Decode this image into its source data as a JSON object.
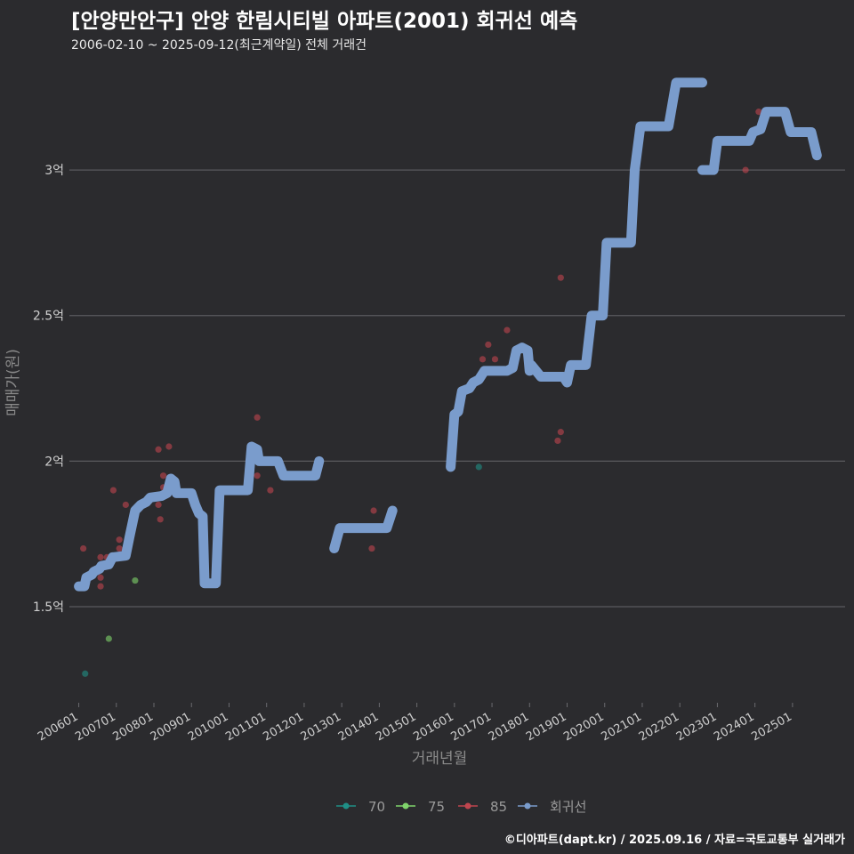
{
  "header": {
    "title": "[안양만안구] 안양 한림시티빌 아파트(2001) 회귀선 예측",
    "subtitle": "2006-02-10 ~ 2025-09-12(최근계약일) 전체 거래건"
  },
  "footer": "©디아파트(dapt.kr) / 2025.09.16 / 자료=국토교통부 실거래가",
  "chart_data": {
    "type": "scatter",
    "title": "[안양만안구] 안양 한림시티빌 아파트(2001) 회귀선 예측",
    "subtitle": "2006-02-10 ~ 2025-09-12(최근계약일) 전체 거래건",
    "xlabel": "거래년월",
    "ylabel": "매매가(원)",
    "xlim": [
      2005.75,
      2026.4
    ],
    "ylim": [
      1.17,
      3.37
    ],
    "y_ticks": [
      {
        "value": 1.5,
        "label": "1.5억"
      },
      {
        "value": 2.0,
        "label": "2억"
      },
      {
        "value": 2.5,
        "label": "2.5억"
      },
      {
        "value": 3.0,
        "label": "3억"
      }
    ],
    "x_ticks": [
      {
        "value": 2006,
        "label": "200601"
      },
      {
        "value": 2007,
        "label": "200701"
      },
      {
        "value": 2008,
        "label": "200801"
      },
      {
        "value": 2009,
        "label": "200901"
      },
      {
        "value": 2010,
        "label": "201001"
      },
      {
        "value": 2011,
        "label": "201101"
      },
      {
        "value": 2012,
        "label": "201201"
      },
      {
        "value": 2013,
        "label": "201301"
      },
      {
        "value": 2014,
        "label": "201401"
      },
      {
        "value": 2015,
        "label": "201501"
      },
      {
        "value": 2016,
        "label": "201601"
      },
      {
        "value": 2017,
        "label": "201701"
      },
      {
        "value": 2018,
        "label": "201801"
      },
      {
        "value": 2019,
        "label": "201901"
      },
      {
        "value": 2020,
        "label": "202001"
      },
      {
        "value": 2021,
        "label": "202101"
      },
      {
        "value": 2022,
        "label": "202201"
      },
      {
        "value": 2023,
        "label": "202301"
      },
      {
        "value": 2024,
        "label": "202401"
      },
      {
        "value": 2025,
        "label": "202501"
      }
    ],
    "legend_position": "bottom",
    "series": [
      {
        "name": "70",
        "kind": "points",
        "color": "#1f8f86",
        "points": [
          [
            2006.17,
            1.27
          ],
          [
            2016.65,
            1.98
          ]
        ]
      },
      {
        "name": "75",
        "kind": "points",
        "color": "#7fd46b",
        "points": [
          [
            2006.8,
            1.39
          ],
          [
            2007.5,
            1.59
          ]
        ]
      },
      {
        "name": "85",
        "kind": "points",
        "color": "#c0454e",
        "points": [
          [
            2006.12,
            1.7
          ],
          [
            2006.58,
            1.57
          ],
          [
            2006.58,
            1.6
          ],
          [
            2006.58,
            1.67
          ],
          [
            2006.75,
            1.67
          ],
          [
            2006.92,
            1.9
          ],
          [
            2007.08,
            1.7
          ],
          [
            2007.08,
            1.73
          ],
          [
            2007.25,
            1.85
          ],
          [
            2008.12,
            2.04
          ],
          [
            2008.12,
            1.85
          ],
          [
            2008.17,
            1.8
          ],
          [
            2008.25,
            1.95
          ],
          [
            2008.25,
            1.91
          ],
          [
            2008.4,
            2.05
          ],
          [
            2008.58,
            1.93
          ],
          [
            2010.75,
            2.15
          ],
          [
            2010.75,
            1.95
          ],
          [
            2011.08,
            2.0
          ],
          [
            2011.1,
            1.9
          ],
          [
            2013.8,
            1.7
          ],
          [
            2013.85,
            1.83
          ],
          [
            2016.75,
            2.35
          ],
          [
            2016.9,
            2.4
          ],
          [
            2017.08,
            2.35
          ],
          [
            2017.4,
            2.45
          ],
          [
            2018.0,
            2.35
          ],
          [
            2018.75,
            2.07
          ],
          [
            2018.83,
            2.1
          ],
          [
            2018.83,
            2.63
          ],
          [
            2023.75,
            3.0
          ],
          [
            2024.1,
            3.2
          ]
        ]
      },
      {
        "name": "회귀선",
        "kind": "line",
        "color": "#7a9ccc",
        "segments": [
          [
            [
              2006.0,
              1.57
            ],
            [
              2006.15,
              1.57
            ],
            [
              2006.2,
              1.6
            ],
            [
              2006.35,
              1.61
            ],
            [
              2006.4,
              1.62
            ],
            [
              2006.55,
              1.63
            ],
            [
              2006.6,
              1.64
            ],
            [
              2006.8,
              1.645
            ],
            [
              2006.9,
              1.67
            ],
            [
              2007.25,
              1.675
            ],
            [
              2007.35,
              1.74
            ],
            [
              2007.5,
              1.83
            ],
            [
              2007.65,
              1.85
            ],
            [
              2007.8,
              1.86
            ],
            [
              2007.9,
              1.875
            ],
            [
              2008.2,
              1.88
            ],
            [
              2008.35,
              1.89
            ],
            [
              2008.45,
              1.94
            ],
            [
              2008.55,
              1.93
            ],
            [
              2008.6,
              1.89
            ],
            [
              2009.0,
              1.89
            ],
            [
              2009.1,
              1.85
            ],
            [
              2009.2,
              1.82
            ],
            [
              2009.3,
              1.81
            ],
            [
              2009.35,
              1.58
            ],
            [
              2009.65,
              1.58
            ],
            [
              2009.75,
              1.9
            ],
            [
              2010.5,
              1.9
            ],
            [
              2010.6,
              2.05
            ],
            [
              2010.75,
              2.04
            ],
            [
              2010.8,
              2.0
            ],
            [
              2011.3,
              2.0
            ],
            [
              2011.45,
              1.95
            ],
            [
              2012.3,
              1.95
            ],
            [
              2012.4,
              2.0
            ]
          ],
          [
            [
              2012.8,
              1.7
            ],
            [
              2012.95,
              1.77
            ],
            [
              2014.2,
              1.77
            ],
            [
              2014.35,
              1.83
            ]
          ],
          [
            [
              2015.9,
              1.98
            ],
            [
              2016.0,
              2.16
            ],
            [
              2016.1,
              2.17
            ],
            [
              2016.2,
              2.24
            ],
            [
              2016.4,
              2.25
            ],
            [
              2016.5,
              2.27
            ],
            [
              2016.65,
              2.28
            ],
            [
              2016.8,
              2.31
            ],
            [
              2017.4,
              2.31
            ],
            [
              2017.55,
              2.32
            ],
            [
              2017.65,
              2.38
            ],
            [
              2017.8,
              2.39
            ],
            [
              2017.95,
              2.38
            ],
            [
              2018.0,
              2.31
            ],
            [
              2018.05,
              2.33
            ],
            [
              2018.3,
              2.29
            ],
            [
              2018.9,
              2.29
            ],
            [
              2019.0,
              2.27
            ],
            [
              2019.1,
              2.33
            ],
            [
              2019.5,
              2.33
            ],
            [
              2019.65,
              2.5
            ],
            [
              2019.95,
              2.5
            ],
            [
              2020.05,
              2.75
            ],
            [
              2020.7,
              2.75
            ],
            [
              2020.8,
              3.0
            ],
            [
              2020.95,
              3.15
            ],
            [
              2021.7,
              3.15
            ],
            [
              2021.9,
              3.3
            ],
            [
              2022.6,
              3.3
            ]
          ],
          [
            [
              2022.6,
              3.0
            ],
            [
              2022.9,
              3.0
            ],
            [
              2023.0,
              3.1
            ],
            [
              2023.85,
              3.1
            ],
            [
              2023.95,
              3.13
            ],
            [
              2024.15,
              3.14
            ],
            [
              2024.3,
              3.2
            ],
            [
              2024.8,
              3.2
            ],
            [
              2024.95,
              3.13
            ],
            [
              2025.5,
              3.13
            ],
            [
              2025.65,
              3.05
            ]
          ]
        ]
      }
    ]
  }
}
